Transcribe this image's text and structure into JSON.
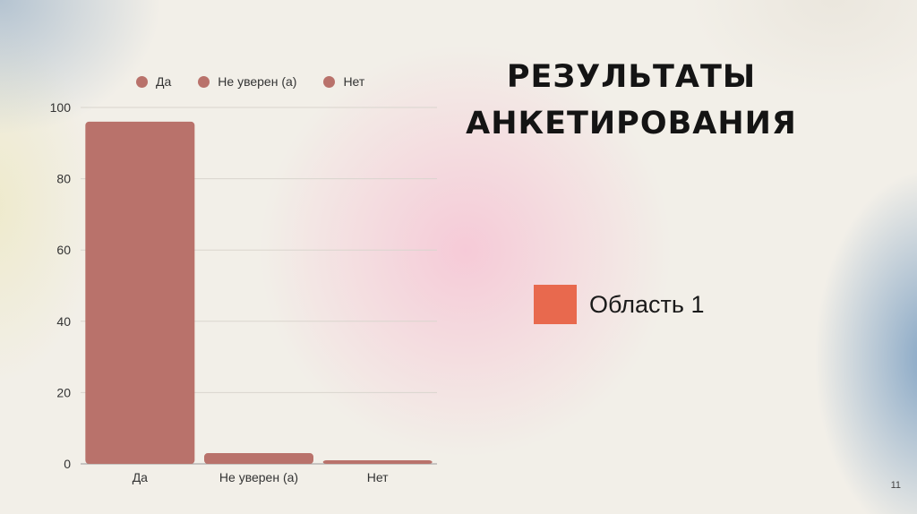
{
  "slide": {
    "title_line1": "РЕЗУЛЬТАТЫ",
    "title_line2": "АНКЕТИРОВАНИЯ",
    "page_number": "11"
  },
  "area_legend": {
    "label": "Область 1",
    "color": "#e8694e"
  },
  "chart_data": {
    "type": "bar",
    "categories": [
      "Да",
      "Не уверен (а)",
      "Нет"
    ],
    "values": [
      96,
      3,
      1
    ],
    "bar_color": "#b9726b",
    "legend": [
      "Да",
      "Не уверен (а)",
      "Нет"
    ],
    "legend_placement": "top",
    "ylim": [
      0,
      100
    ],
    "yticks": [
      0,
      20,
      40,
      60,
      80,
      100
    ],
    "grid": true
  }
}
